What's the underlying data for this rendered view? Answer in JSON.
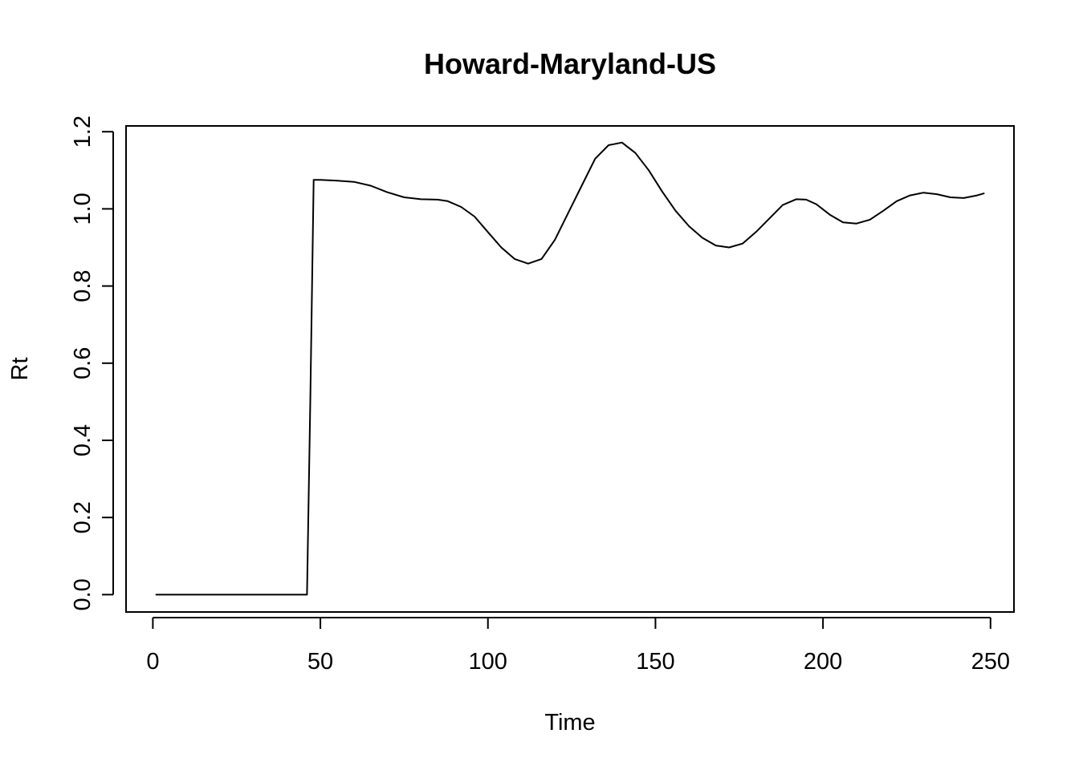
{
  "chart_data": {
    "type": "line",
    "title": "Howard-Maryland-US",
    "xlabel": "Time",
    "ylabel": "Rt",
    "xlim": [
      -8,
      257
    ],
    "ylim": [
      -0.045,
      1.215
    ],
    "xticks": [
      0,
      50,
      100,
      150,
      200,
      250
    ],
    "xtick_labels": [
      "0",
      "50",
      "100",
      "150",
      "200",
      "250"
    ],
    "yticks": [
      0.0,
      0.2,
      0.4,
      0.6,
      0.8,
      1.0,
      1.2
    ],
    "ytick_labels": [
      "0.0",
      "0.2",
      "0.4",
      "0.6",
      "0.8",
      "1.0",
      "1.2"
    ],
    "grid": false,
    "series": [
      {
        "line_color": "#000000",
        "x": [
          1,
          10,
          20,
          30,
          40,
          46,
          47,
          48,
          50,
          55,
          60,
          65,
          70,
          75,
          80,
          85,
          88,
          92,
          96,
          100,
          104,
          108,
          112,
          116,
          120,
          124,
          128,
          132,
          136,
          140,
          144,
          148,
          152,
          156,
          160,
          164,
          168,
          172,
          176,
          180,
          184,
          188,
          192,
          195,
          198,
          202,
          206,
          210,
          214,
          218,
          222,
          226,
          230,
          234,
          238,
          242,
          246,
          248
        ],
        "y": [
          0.0,
          0.0,
          0.0,
          0.0,
          0.0,
          0.0,
          0.5,
          1.075,
          1.075,
          1.073,
          1.07,
          1.06,
          1.043,
          1.03,
          1.025,
          1.024,
          1.02,
          1.005,
          0.98,
          0.94,
          0.9,
          0.87,
          0.858,
          0.87,
          0.92,
          0.99,
          1.06,
          1.13,
          1.165,
          1.172,
          1.145,
          1.1,
          1.045,
          0.995,
          0.955,
          0.925,
          0.905,
          0.9,
          0.91,
          0.94,
          0.975,
          1.01,
          1.025,
          1.024,
          1.012,
          0.985,
          0.965,
          0.962,
          0.972,
          0.995,
          1.02,
          1.035,
          1.042,
          1.038,
          1.03,
          1.028,
          1.035,
          1.04
        ]
      }
    ]
  }
}
